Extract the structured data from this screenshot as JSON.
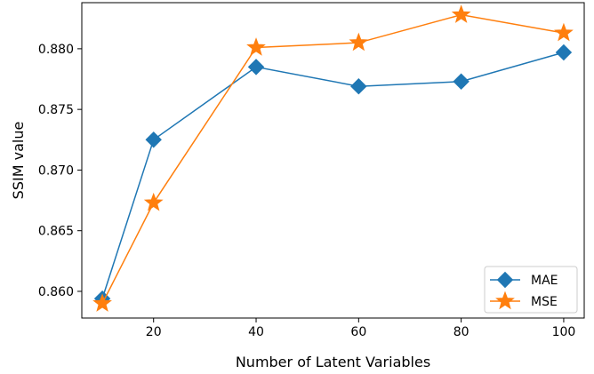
{
  "chart_data": {
    "type": "line",
    "xlabel": "Number of Latent Variables",
    "ylabel": "SSIM value",
    "xlim": [
      6,
      104
    ],
    "ylim": [
      0.8578,
      0.8838
    ],
    "xticks": [
      20,
      40,
      60,
      80,
      100
    ],
    "yticks": [
      0.86,
      0.865,
      0.87,
      0.875,
      0.88
    ],
    "ytick_labels": [
      "0.860",
      "0.865",
      "0.870",
      "0.875",
      "0.880"
    ],
    "x": [
      10,
      20,
      40,
      60,
      80,
      100
    ],
    "series": [
      {
        "name": "MAE",
        "values": [
          0.8594,
          0.8725,
          0.8785,
          0.8769,
          0.8773,
          0.8797
        ],
        "color": "#1f77b4",
        "marker": "diamond"
      },
      {
        "name": "MSE",
        "values": [
          0.859,
          0.8673,
          0.8801,
          0.8805,
          0.8828,
          0.8813
        ],
        "color": "#ff7f0e",
        "marker": "star"
      }
    ],
    "legend": "lower-right",
    "grid": false
  }
}
